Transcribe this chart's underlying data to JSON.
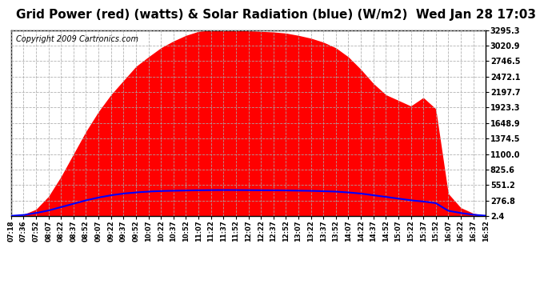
{
  "title": "Grid Power (red) (watts) & Solar Radiation (blue) (W/m2)  Wed Jan 28 17:03",
  "copyright": "Copyright 2009 Cartronics.com",
  "yticks": [
    2.4,
    276.8,
    551.2,
    825.6,
    1100.0,
    1374.5,
    1648.9,
    1923.3,
    2197.7,
    2472.1,
    2746.5,
    3020.9,
    3295.3
  ],
  "ymin": 2.4,
  "ymax": 3295.3,
  "bg_color": "#ffffff",
  "plot_bg_color": "#ffffff",
  "grid_color": "#aaaaaa",
  "red_color": "#ff0000",
  "blue_color": "#0000ff",
  "title_fontsize": 11,
  "copyright_fontsize": 7,
  "xtick_labels": [
    "07:18",
    "07:36",
    "07:52",
    "08:07",
    "08:22",
    "08:37",
    "08:52",
    "09:07",
    "09:22",
    "09:37",
    "09:52",
    "10:07",
    "10:22",
    "10:37",
    "10:52",
    "11:07",
    "11:22",
    "11:37",
    "11:52",
    "12:07",
    "12:22",
    "12:37",
    "12:52",
    "13:07",
    "13:22",
    "13:37",
    "13:52",
    "14:07",
    "14:22",
    "14:37",
    "14:52",
    "15:07",
    "15:22",
    "15:37",
    "15:52",
    "16:07",
    "16:22",
    "16:37",
    "16:52"
  ],
  "red_power": [
    0,
    30,
    120,
    350,
    700,
    1100,
    1500,
    1850,
    2150,
    2400,
    2650,
    2820,
    2980,
    3100,
    3200,
    3270,
    3290,
    3295,
    3290,
    3280,
    3270,
    3260,
    3240,
    3200,
    3150,
    3080,
    2980,
    2820,
    2600,
    2350,
    2150,
    2050,
    1950,
    2100,
    1900,
    400,
    150,
    50,
    10
  ],
  "solar_rad": [
    5,
    20,
    55,
    100,
    160,
    220,
    280,
    330,
    370,
    400,
    420,
    435,
    445,
    450,
    455,
    458,
    460,
    462,
    461,
    460,
    459,
    458,
    455,
    452,
    448,
    442,
    435,
    420,
    400,
    370,
    340,
    310,
    280,
    260,
    230,
    95,
    55,
    25,
    8
  ]
}
